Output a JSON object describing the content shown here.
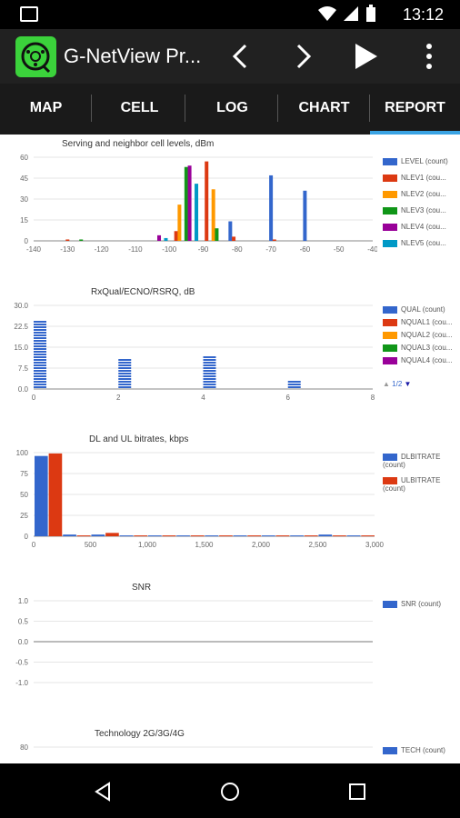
{
  "status": {
    "time": "13:12",
    "icons": [
      "gallery-icon",
      "wifi-icon",
      "signal-icon",
      "battery-icon"
    ]
  },
  "app": {
    "title": "G-NetView Pr..."
  },
  "toolbar": {
    "actions": [
      "chevron-left-icon",
      "chevron-right-icon",
      "play-icon",
      "more-vert-icon"
    ]
  },
  "tabs": [
    {
      "label": "MAP"
    },
    {
      "label": "CELL"
    },
    {
      "label": "LOG"
    },
    {
      "label": "CHART"
    },
    {
      "label": "REPORT",
      "active": true
    }
  ],
  "colors": {
    "blue": "#3366cc",
    "red": "#dc3912",
    "orange": "#ff9900",
    "green": "#109618",
    "purple": "#990099",
    "cyan": "#0099c6",
    "accent": "#3aa3e3"
  },
  "chart_data": [
    {
      "type": "bar",
      "title": "Serving and neighbor cell levels, dBm",
      "xlim": [
        -140,
        -40
      ],
      "ylim": [
        0,
        60
      ],
      "x_ticks": [
        "-140",
        "-130",
        "-120",
        "-110",
        "-100",
        "-90",
        "-80",
        "-70",
        "-60",
        "-50",
        "-40"
      ],
      "y_ticks": [
        "60",
        "45",
        "30",
        "15",
        "0"
      ],
      "legend": [
        "LEVEL (count)",
        "NLEV1 (cou...",
        "NLEV2 (cou...",
        "NLEV3 (cou...",
        "NLEV4 (cou...",
        "NLEV5 (cou..."
      ],
      "series": [
        {
          "name": "LEVEL (count)",
          "color": "#3366cc",
          "points": [
            [
              -92,
              6
            ],
            [
              -82,
              14
            ],
            [
              -70,
              47
            ],
            [
              -60,
              36
            ]
          ]
        },
        {
          "name": "NLEV1 (cou...",
          "color": "#dc3912",
          "points": [
            [
              -130,
              1
            ],
            [
              -98,
              7
            ],
            [
              -89,
              57
            ],
            [
              -81,
              3
            ],
            [
              -69,
              1
            ]
          ]
        },
        {
          "name": "NLEV2 (cou...",
          "color": "#ff9900",
          "points": [
            [
              -97,
              26
            ],
            [
              -87,
              37
            ]
          ]
        },
        {
          "name": "NLEV3 (cou...",
          "color": "#109618",
          "points": [
            [
              -126,
              1
            ],
            [
              -95,
              53
            ],
            [
              -86,
              9
            ]
          ]
        },
        {
          "name": "NLEV4 (cou...",
          "color": "#990099",
          "points": [
            [
              -103,
              4
            ],
            [
              -94,
              54
            ]
          ]
        },
        {
          "name": "NLEV5 (cou...",
          "color": "#0099c6",
          "points": [
            [
              -101,
              2
            ],
            [
              -92,
              41
            ]
          ]
        }
      ]
    },
    {
      "type": "bar",
      "title": "RxQual/ECNO/RSRQ, dB",
      "xlim": [
        0,
        8
      ],
      "ylim": [
        0,
        30
      ],
      "x_ticks": [
        "0",
        "2",
        "4",
        "6",
        "8"
      ],
      "y_ticks": [
        "30.0",
        "22.5",
        "15.0",
        "7.5",
        "0.0"
      ],
      "legend": [
        "QUAL (count)",
        "NQUAL1 (cou...",
        "NQUAL2 (cou...",
        "NQUAL3 (cou...",
        "NQUAL4 (cou..."
      ],
      "legend_page": "1/2",
      "series": [
        {
          "name": "QUAL (count)",
          "color": "#3366cc",
          "points": [
            [
              0.15,
              25
            ],
            [
              2.15,
              11
            ],
            [
              4.15,
              12
            ],
            [
              6.15,
              3
            ]
          ]
        }
      ]
    },
    {
      "type": "bar",
      "title": "DL and UL bitrates, kbps",
      "xlim": [
        0,
        3000
      ],
      "ylim": [
        0,
        100
      ],
      "x_ticks": [
        "0",
        "500",
        "1,000",
        "1,500",
        "2,000",
        "2,500",
        "3,000"
      ],
      "y_ticks": [
        "100",
        "75",
        "50",
        "25",
        "0"
      ],
      "legend": [
        "DLBITRATE (count)",
        "ULBITRATE (count)"
      ],
      "bins": 125,
      "series": [
        {
          "name": "DLBITRATE (count)",
          "color": "#3366cc",
          "values": [
            96,
            2,
            2,
            1,
            1,
            1,
            1,
            1,
            1,
            1,
            2,
            1
          ]
        },
        {
          "name": "ULBITRATE (count)",
          "color": "#dc3912",
          "values": [
            99,
            1,
            4,
            1,
            1,
            1,
            1,
            1,
            1,
            1,
            1,
            1
          ]
        }
      ]
    },
    {
      "type": "line",
      "title": "SNR",
      "ylim": [
        -1,
        1
      ],
      "y_ticks": [
        "1.0",
        "0.5",
        "0.0",
        "-0.5",
        "-1.0"
      ],
      "legend": [
        "SNR (count)"
      ],
      "series": []
    },
    {
      "type": "bar",
      "title": "Technology 2G/3G/4G",
      "y_ticks": [
        "80"
      ],
      "legend": [
        "TECH (count)"
      ],
      "series": []
    }
  ]
}
